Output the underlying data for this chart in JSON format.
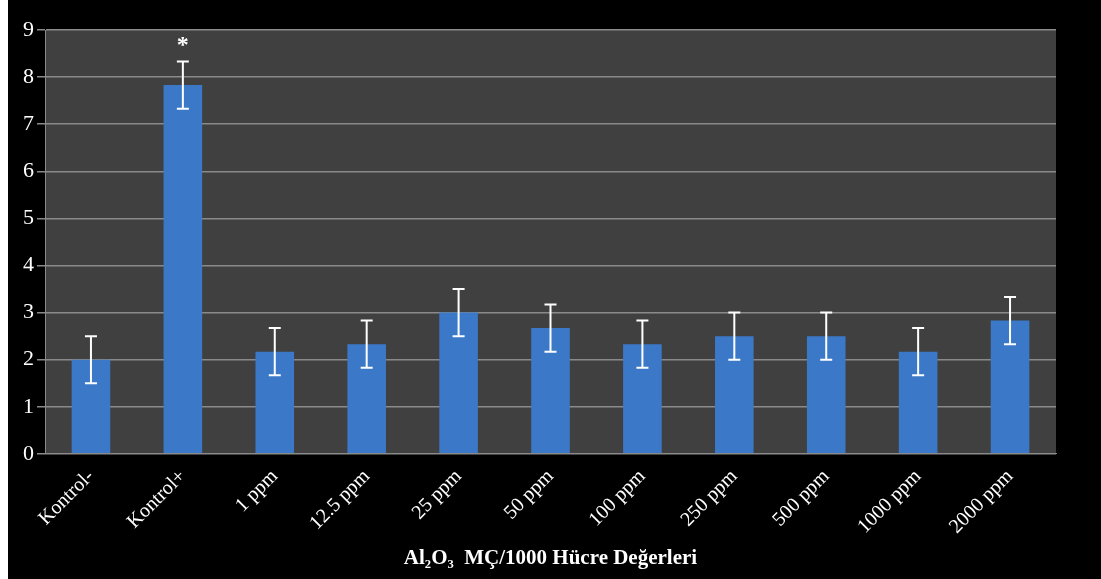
{
  "chart_data": {
    "type": "bar",
    "xlabel": "Al₂O₃  MÇ/1000 Hücre Değerleri",
    "categories": [
      "Kontrol-",
      "Kontrol+",
      "1 ppm",
      "12.5 ppm",
      "25 ppm",
      "50 ppm",
      "100 ppm",
      "250 ppm",
      "500 ppm",
      "1000 ppm",
      "2000 ppm"
    ],
    "values": [
      2.0,
      7.83,
      2.17,
      2.33,
      3.0,
      2.67,
      2.33,
      2.5,
      2.5,
      2.17,
      2.83
    ],
    "errors": [
      0.5,
      0.5,
      0.5,
      0.5,
      0.5,
      0.5,
      0.5,
      0.5,
      0.5,
      0.5,
      0.5
    ],
    "color": "#3b78c8",
    "ylim": [
      0,
      9
    ],
    "yticks": [
      0,
      1,
      2,
      3,
      4,
      5,
      6,
      7,
      8,
      9
    ],
    "grid": "y",
    "legend": false,
    "annotations": [
      {
        "text": "*",
        "x": "Kontrol+",
        "y": 8.33
      }
    ]
  }
}
